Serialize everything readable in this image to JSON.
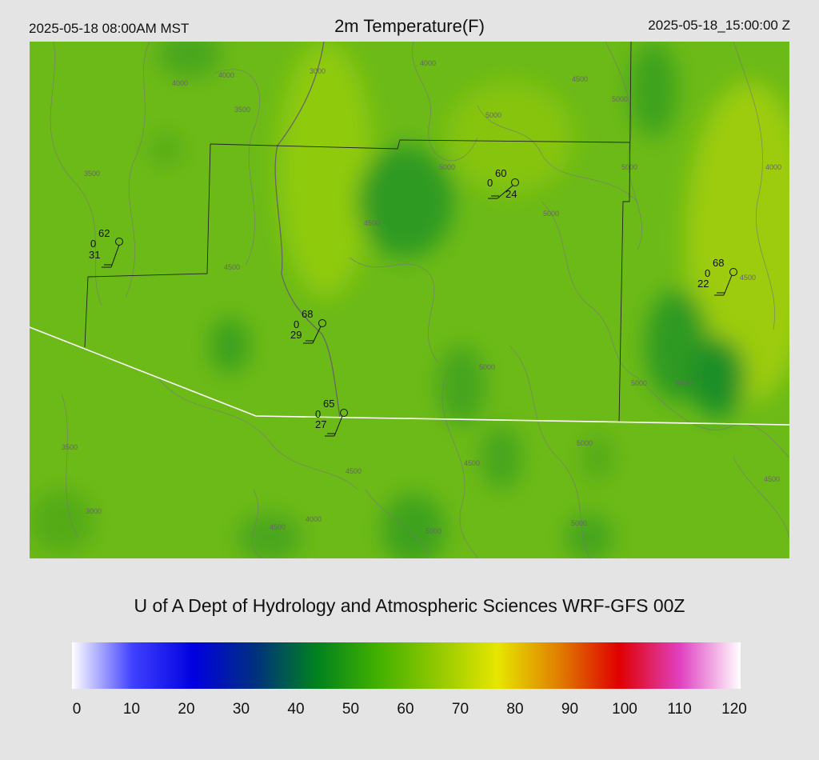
{
  "header": {
    "left": "2025-05-18 08:00AM MST",
    "title": "2m Temperature(F)",
    "right": "2025-05-18_15:00:00 Z"
  },
  "credit": "U of A Dept of Hydrology and Atmospheric Sciences WRF-GFS 00Z",
  "contour_labels": [
    "3000",
    "3500",
    "4000",
    "4500",
    "5000"
  ],
  "stations": [
    {
      "temp": "62",
      "wind": "0",
      "dew": "31"
    },
    {
      "temp": "60",
      "wind": "0",
      "dew": "24"
    },
    {
      "temp": "68",
      "wind": "0",
      "dew": "22"
    },
    {
      "temp": "68",
      "wind": "0",
      "dew": "29"
    },
    {
      "temp": "65",
      "wind": "0",
      "dew": "27"
    }
  ],
  "colorbar": {
    "ticks": [
      "0",
      "10",
      "20",
      "30",
      "40",
      "50",
      "60",
      "70",
      "80",
      "90",
      "100",
      "110",
      "120"
    ],
    "colors": [
      "#ffffff",
      "#4040ff",
      "#0000e0",
      "#003080",
      "#008020",
      "#40b000",
      "#90c800",
      "#e6e600",
      "#e08000",
      "#e00000",
      "#e040c0",
      "#ffffff"
    ]
  }
}
